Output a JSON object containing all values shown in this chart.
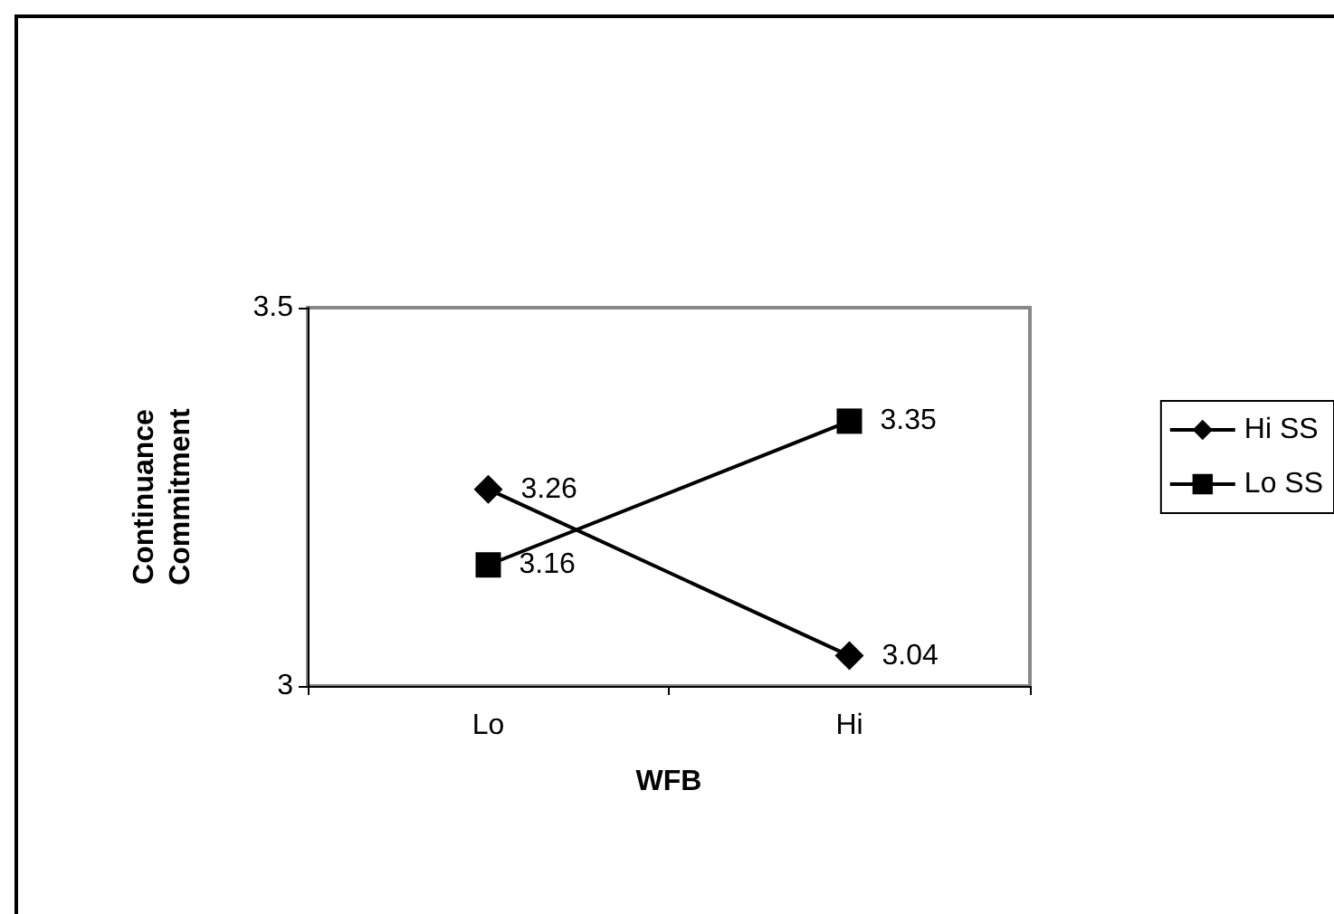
{
  "chart_data": {
    "type": "line",
    "xlabel": "WFB",
    "ylabel": "Continuance\nCommitment",
    "categories": [
      "Lo",
      "Hi"
    ],
    "series": [
      {
        "name": "Hi SS",
        "color": "#000000",
        "marker": "diamond",
        "values": [
          3.26,
          3.04
        ]
      },
      {
        "name": "Lo SS",
        "color": "#000000",
        "marker": "square",
        "values": [
          3.16,
          3.35
        ]
      }
    ],
    "ylim": [
      3,
      3.5
    ],
    "yticks": [
      3,
      3.5
    ],
    "grid": false,
    "legend": "right",
    "data_labels": true
  }
}
